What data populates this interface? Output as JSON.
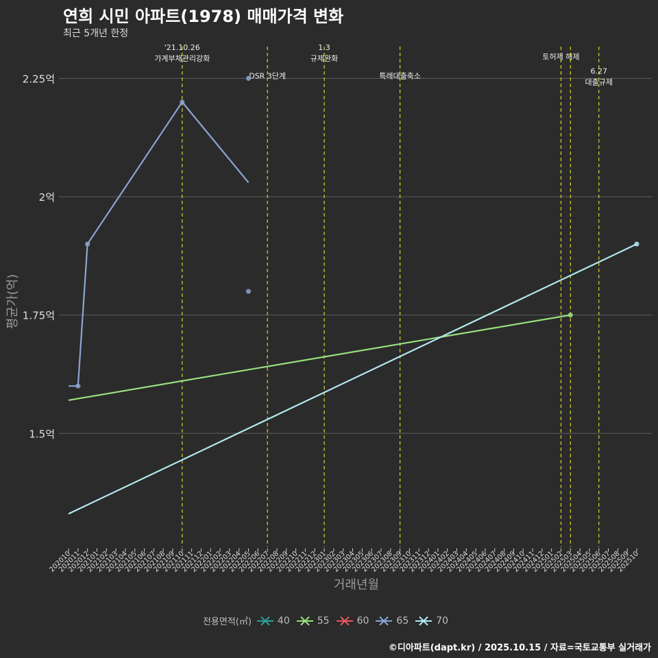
{
  "chart_data": {
    "type": "line",
    "title": "연희 시민 아파트(1978) 매매가격 변화",
    "subtitle": "최근 5개년 한정",
    "xlabel": "거래년월",
    "ylabel": "평균가(억)",
    "ylim": [
      1.26,
      2.32
    ],
    "y_ticks": [
      {
        "value": 1.5,
        "label": "1.5억"
      },
      {
        "value": 1.75,
        "label": "1.75억"
      },
      {
        "value": 2.0,
        "label": "2억"
      },
      {
        "value": 2.25,
        "label": "2.25억"
      }
    ],
    "x_ticks": [
      "202010",
      "202011",
      "202012",
      "202101",
      "202102",
      "202103",
      "202104",
      "202105",
      "202106",
      "202107",
      "202108",
      "202109",
      "202110",
      "202111",
      "202112",
      "202201",
      "202202",
      "202203",
      "202204",
      "202205",
      "202206",
      "202207",
      "202208",
      "202209",
      "202210",
      "202211",
      "202212",
      "202301",
      "202302",
      "202303",
      "202304",
      "202305",
      "202306",
      "202307",
      "202308",
      "202309",
      "202310",
      "202311",
      "202312",
      "202401",
      "202402",
      "202403",
      "202404",
      "202405",
      "202406",
      "202407",
      "202408",
      "202409",
      "202410",
      "202411",
      "202412",
      "202501",
      "202502",
      "202503",
      "202504",
      "202505",
      "202506",
      "202507",
      "202508",
      "202509",
      "202510"
    ],
    "series": [
      {
        "name": "40",
        "color": "#2e9e9a",
        "points": []
      },
      {
        "name": "55",
        "color": "#98e07f",
        "points": [
          [
            0,
            1.57
          ],
          [
            53,
            1.75
          ]
        ],
        "markers": [
          [
            53,
            1.75
          ]
        ]
      },
      {
        "name": "60",
        "color": "#e5575d",
        "points": []
      },
      {
        "name": "65",
        "color": "#8aa6cf",
        "points": [
          [
            0,
            1.6
          ],
          [
            1,
            1.6
          ],
          [
            2,
            1.9
          ],
          [
            12,
            2.2
          ],
          [
            19,
            2.03
          ]
        ],
        "markers": [
          [
            1,
            1.6
          ],
          [
            2,
            1.9
          ],
          [
            12,
            2.2
          ],
          [
            19,
            2.25
          ],
          [
            19,
            1.8
          ]
        ]
      },
      {
        "name": "70",
        "color": "#b2eaf0",
        "points": [
          [
            0,
            1.33
          ],
          [
            60,
            1.9
          ]
        ],
        "markers": [
          [
            60,
            1.9
          ]
        ]
      }
    ],
    "events": [
      {
        "x": 12,
        "lines": [
          "'21.10.26",
          "가계부채관리강화"
        ],
        "label_y": 2.31
      },
      {
        "x": 21,
        "lines": [
          "DSR 3단계"
        ],
        "label_y": 2.25
      },
      {
        "x": 27,
        "lines": [
          "1.3",
          "규제완화"
        ],
        "label_y": 2.31
      },
      {
        "x": 35,
        "lines": [
          "특례대출축소"
        ],
        "label_y": 2.25
      },
      {
        "x": 52,
        "lines": [
          "토허제 해제"
        ],
        "label_y": 2.29
      },
      {
        "x": 53,
        "lines": [],
        "label_y": 2.29
      },
      {
        "x": 56,
        "lines": [
          "6.27",
          "대출규제"
        ],
        "label_y": 2.26
      }
    ]
  },
  "legend": {
    "title": "전용면적(㎡)"
  },
  "credit": "©디아파트(dapt.kr) / 2025.10.15 / 자료=국토교통부 실거래가"
}
